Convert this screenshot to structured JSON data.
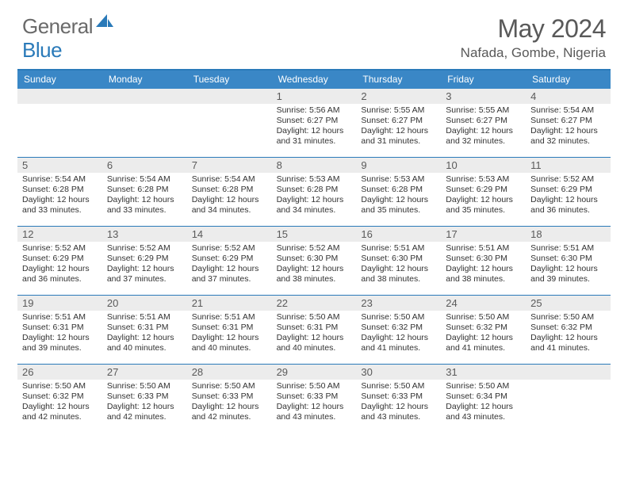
{
  "brand": {
    "name1": "General",
    "name2": "Blue"
  },
  "title": "May 2024",
  "location": "Nafada, Gombe, Nigeria",
  "colors": {
    "header_bar": "#3a87c6",
    "accent_line": "#2a7ab9",
    "daynum_bg": "#ececec",
    "text_dark": "#323232",
    "text_muted": "#595959"
  },
  "weekdays": [
    "Sunday",
    "Monday",
    "Tuesday",
    "Wednesday",
    "Thursday",
    "Friday",
    "Saturday"
  ],
  "weeks": [
    [
      {
        "n": "",
        "sr": "",
        "ss": "",
        "dl": ""
      },
      {
        "n": "",
        "sr": "",
        "ss": "",
        "dl": ""
      },
      {
        "n": "",
        "sr": "",
        "ss": "",
        "dl": ""
      },
      {
        "n": "1",
        "sr": "5:56 AM",
        "ss": "6:27 PM",
        "dl": "12 hours and 31 minutes."
      },
      {
        "n": "2",
        "sr": "5:55 AM",
        "ss": "6:27 PM",
        "dl": "12 hours and 31 minutes."
      },
      {
        "n": "3",
        "sr": "5:55 AM",
        "ss": "6:27 PM",
        "dl": "12 hours and 32 minutes."
      },
      {
        "n": "4",
        "sr": "5:54 AM",
        "ss": "6:27 PM",
        "dl": "12 hours and 32 minutes."
      }
    ],
    [
      {
        "n": "5",
        "sr": "5:54 AM",
        "ss": "6:28 PM",
        "dl": "12 hours and 33 minutes."
      },
      {
        "n": "6",
        "sr": "5:54 AM",
        "ss": "6:28 PM",
        "dl": "12 hours and 33 minutes."
      },
      {
        "n": "7",
        "sr": "5:54 AM",
        "ss": "6:28 PM",
        "dl": "12 hours and 34 minutes."
      },
      {
        "n": "8",
        "sr": "5:53 AM",
        "ss": "6:28 PM",
        "dl": "12 hours and 34 minutes."
      },
      {
        "n": "9",
        "sr": "5:53 AM",
        "ss": "6:28 PM",
        "dl": "12 hours and 35 minutes."
      },
      {
        "n": "10",
        "sr": "5:53 AM",
        "ss": "6:29 PM",
        "dl": "12 hours and 35 minutes."
      },
      {
        "n": "11",
        "sr": "5:52 AM",
        "ss": "6:29 PM",
        "dl": "12 hours and 36 minutes."
      }
    ],
    [
      {
        "n": "12",
        "sr": "5:52 AM",
        "ss": "6:29 PM",
        "dl": "12 hours and 36 minutes."
      },
      {
        "n": "13",
        "sr": "5:52 AM",
        "ss": "6:29 PM",
        "dl": "12 hours and 37 minutes."
      },
      {
        "n": "14",
        "sr": "5:52 AM",
        "ss": "6:29 PM",
        "dl": "12 hours and 37 minutes."
      },
      {
        "n": "15",
        "sr": "5:52 AM",
        "ss": "6:30 PM",
        "dl": "12 hours and 38 minutes."
      },
      {
        "n": "16",
        "sr": "5:51 AM",
        "ss": "6:30 PM",
        "dl": "12 hours and 38 minutes."
      },
      {
        "n": "17",
        "sr": "5:51 AM",
        "ss": "6:30 PM",
        "dl": "12 hours and 38 minutes."
      },
      {
        "n": "18",
        "sr": "5:51 AM",
        "ss": "6:30 PM",
        "dl": "12 hours and 39 minutes."
      }
    ],
    [
      {
        "n": "19",
        "sr": "5:51 AM",
        "ss": "6:31 PM",
        "dl": "12 hours and 39 minutes."
      },
      {
        "n": "20",
        "sr": "5:51 AM",
        "ss": "6:31 PM",
        "dl": "12 hours and 40 minutes."
      },
      {
        "n": "21",
        "sr": "5:51 AM",
        "ss": "6:31 PM",
        "dl": "12 hours and 40 minutes."
      },
      {
        "n": "22",
        "sr": "5:50 AM",
        "ss": "6:31 PM",
        "dl": "12 hours and 40 minutes."
      },
      {
        "n": "23",
        "sr": "5:50 AM",
        "ss": "6:32 PM",
        "dl": "12 hours and 41 minutes."
      },
      {
        "n": "24",
        "sr": "5:50 AM",
        "ss": "6:32 PM",
        "dl": "12 hours and 41 minutes."
      },
      {
        "n": "25",
        "sr": "5:50 AM",
        "ss": "6:32 PM",
        "dl": "12 hours and 41 minutes."
      }
    ],
    [
      {
        "n": "26",
        "sr": "5:50 AM",
        "ss": "6:32 PM",
        "dl": "12 hours and 42 minutes."
      },
      {
        "n": "27",
        "sr": "5:50 AM",
        "ss": "6:33 PM",
        "dl": "12 hours and 42 minutes."
      },
      {
        "n": "28",
        "sr": "5:50 AM",
        "ss": "6:33 PM",
        "dl": "12 hours and 42 minutes."
      },
      {
        "n": "29",
        "sr": "5:50 AM",
        "ss": "6:33 PM",
        "dl": "12 hours and 43 minutes."
      },
      {
        "n": "30",
        "sr": "5:50 AM",
        "ss": "6:33 PM",
        "dl": "12 hours and 43 minutes."
      },
      {
        "n": "31",
        "sr": "5:50 AM",
        "ss": "6:34 PM",
        "dl": "12 hours and 43 minutes."
      },
      {
        "n": "",
        "sr": "",
        "ss": "",
        "dl": ""
      }
    ]
  ],
  "labels": {
    "sunrise": "Sunrise:",
    "sunset": "Sunset:",
    "daylight": "Daylight:"
  }
}
